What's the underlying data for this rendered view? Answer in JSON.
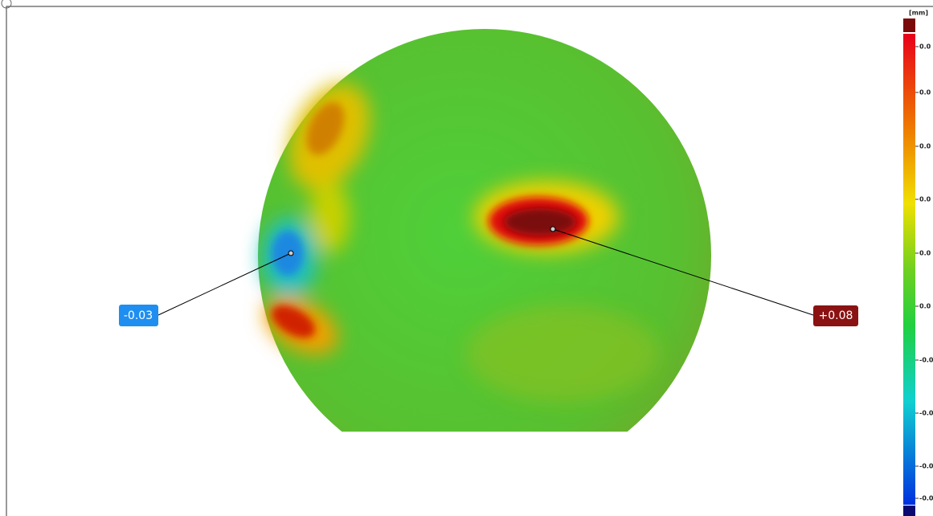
{
  "view": {
    "unit": "[mm]",
    "scale_labels": [
      "0.0",
      "0.0",
      "0.0",
      "0.0",
      "0.0",
      "0.0",
      "-0.0",
      "-0.0",
      "-0.0",
      "-0.0"
    ],
    "annotations": [
      {
        "label": "-0.03"
      },
      {
        "label": "+0.08"
      }
    ]
  }
}
